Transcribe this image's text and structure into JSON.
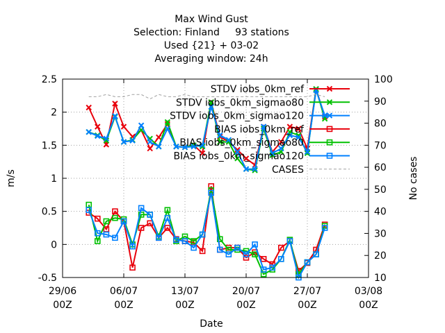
{
  "chart_data": {
    "type": "line",
    "title_lines": [
      "Max Wind Gust",
      "Selection: Finland     93 stations",
      "Used {21} + 03-02",
      "Averaging window: 24h"
    ],
    "xlabel": "Date",
    "ylabel": "m/s",
    "y2label": "No cases",
    "xlim": [
      "2024-06-29",
      "2024-08-03"
    ],
    "ylim": [
      -0.5,
      2.5
    ],
    "y2lim": [
      10,
      100
    ],
    "grid": true,
    "legend_position": "top-right",
    "x_ticks": [
      {
        "date": "2024-06-29",
        "label": [
          "29/06",
          "00Z"
        ]
      },
      {
        "date": "2024-07-06",
        "label": [
          "06/07",
          "00Z"
        ]
      },
      {
        "date": "2024-07-13",
        "label": [
          "13/07",
          "00Z"
        ]
      },
      {
        "date": "2024-07-20",
        "label": [
          "20/07",
          "00Z"
        ]
      },
      {
        "date": "2024-07-27",
        "label": [
          "27/07",
          "00Z"
        ]
      },
      {
        "date": "2024-08-03",
        "label": [
          "03/08",
          "00Z"
        ]
      }
    ],
    "y_ticks": [
      "-0.5",
      "0",
      "0.5",
      "1",
      "1.5",
      "2",
      "2.5"
    ],
    "y2_ticks": [
      "10",
      "20",
      "30",
      "40",
      "50",
      "60",
      "70",
      "80",
      "90",
      "100"
    ],
    "x": [
      "2024-07-02",
      "2024-07-03",
      "2024-07-04",
      "2024-07-05",
      "2024-07-06",
      "2024-07-07",
      "2024-07-08",
      "2024-07-09",
      "2024-07-10",
      "2024-07-11",
      "2024-07-12",
      "2024-07-13",
      "2024-07-14",
      "2024-07-15",
      "2024-07-16",
      "2024-07-17",
      "2024-07-18",
      "2024-07-19",
      "2024-07-20",
      "2024-07-21",
      "2024-07-22",
      "2024-07-23",
      "2024-07-24",
      "2024-07-25",
      "2024-07-26",
      "2024-07-27",
      "2024-07-28",
      "2024-07-29"
    ],
    "series": [
      {
        "name": "STDV iobs_0km_ref",
        "color": "#e8000b",
        "marker": "x",
        "axis": "y",
        "values": [
          2.07,
          1.78,
          1.51,
          2.13,
          1.78,
          1.63,
          1.73,
          1.45,
          1.62,
          1.82,
          1.48,
          1.47,
          1.5,
          1.38,
          2.15,
          1.63,
          1.55,
          1.43,
          1.3,
          1.2,
          1.78,
          1.4,
          1.55,
          1.78,
          1.75,
          1.45,
          2.35,
          1.93
        ]
      },
      {
        "name": "STDV iobs_0km_sigmao80",
        "color": "#00c000",
        "marker": "x",
        "axis": "y",
        "values": [
          1.7,
          1.65,
          1.57,
          1.93,
          1.55,
          1.58,
          1.73,
          1.6,
          1.48,
          1.85,
          1.48,
          1.47,
          1.5,
          1.48,
          2.15,
          1.55,
          1.55,
          1.3,
          1.14,
          1.12,
          1.75,
          1.35,
          1.4,
          1.7,
          1.65,
          1.38,
          2.35,
          1.9
        ]
      },
      {
        "name": "STDV iobs_0km_sigmao120",
        "color": "#0080ff",
        "marker": "x",
        "axis": "y",
        "values": [
          1.7,
          1.64,
          1.6,
          1.94,
          1.55,
          1.57,
          1.8,
          1.55,
          1.48,
          1.75,
          1.48,
          1.47,
          1.48,
          1.5,
          2.08,
          1.65,
          1.58,
          1.4,
          1.14,
          1.14,
          1.78,
          1.38,
          1.45,
          1.65,
          1.62,
          1.4,
          2.33,
          1.95
        ]
      },
      {
        "name": "BIAS iobs_0km_ref",
        "color": "#e8000b",
        "marker": "square",
        "axis": "y",
        "values": [
          0.48,
          0.39,
          0.23,
          0.5,
          0.35,
          -0.35,
          0.25,
          0.32,
          0.1,
          0.25,
          0.08,
          0.05,
          0.03,
          -0.1,
          0.88,
          -0.08,
          -0.05,
          -0.05,
          -0.2,
          -0.12,
          -0.22,
          -0.3,
          -0.05,
          0.05,
          -0.4,
          -0.28,
          -0.08,
          0.3
        ]
      },
      {
        "name": "BIAS iobs_0km_sigmao80",
        "color": "#00c000",
        "marker": "square",
        "axis": "y",
        "values": [
          0.6,
          0.05,
          0.35,
          0.4,
          0.38,
          0.0,
          0.45,
          0.45,
          0.12,
          0.52,
          0.05,
          0.12,
          0.05,
          0.15,
          0.82,
          0.08,
          -0.08,
          -0.08,
          -0.1,
          -0.15,
          -0.45,
          -0.38,
          -0.22,
          0.07,
          -0.45,
          -0.27,
          -0.15,
          0.28
        ]
      },
      {
        "name": "BIAS iobs_0km_sigmao120",
        "color": "#0080ff",
        "marker": "square",
        "axis": "y",
        "values": [
          0.52,
          0.17,
          0.15,
          0.1,
          0.35,
          -0.03,
          0.55,
          0.45,
          0.1,
          0.4,
          0.07,
          0.05,
          -0.05,
          0.15,
          0.78,
          -0.08,
          -0.15,
          -0.05,
          -0.15,
          0.0,
          -0.38,
          -0.35,
          -0.22,
          0.05,
          -0.5,
          -0.27,
          -0.15,
          0.25
        ]
      },
      {
        "name": "CASES",
        "color": "#a0a0a0",
        "marker": "none",
        "axis": "y2",
        "values": [
          92,
          92,
          93,
          92,
          92,
          93,
          93,
          91,
          93,
          92,
          92,
          93,
          92,
          92,
          92,
          92,
          92,
          92,
          92,
          92,
          92,
          92,
          92,
          92,
          92,
          92,
          93,
          92
        ]
      }
    ]
  }
}
